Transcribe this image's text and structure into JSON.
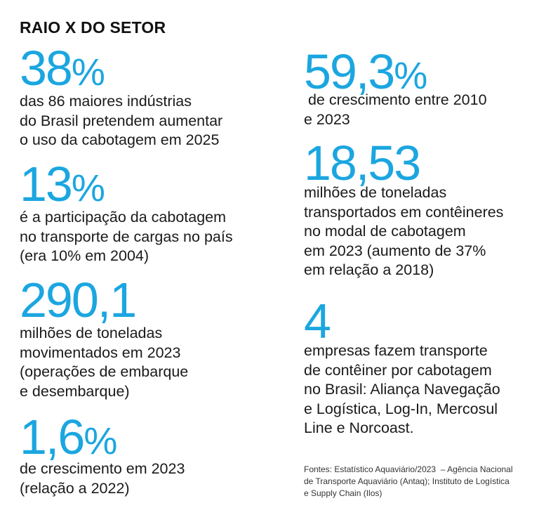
{
  "title": "RAIO X DO SETOR",
  "stats": [
    {
      "number": "38",
      "unit": "%",
      "lines": [
        "das 86 maiores indústrias",
        "do Brasil pretendem aumentar",
        "o uso da cabotagem em 2025"
      ]
    },
    {
      "number": "13",
      "unit": "%",
      "lines": [
        "é a participação da cabotagem",
        "no transporte de cargas no país",
        "(era 10% em 2004)"
      ]
    },
    {
      "number": "290,1",
      "lines": [
        "milhões de toneladas",
        "movimentados em 2023",
        "(operações de embarque",
        "e desembarque)"
      ]
    },
    {
      "number": "1,6",
      "unit": "%",
      "lines": [
        "de crescimento em 2023",
        "(relação a 2022)"
      ]
    },
    {
      "number": "59,3",
      "unit": "%",
      "lines": [
        " de crescimento entre 2010",
        "e 2023"
      ]
    },
    {
      "number": "18,53",
      "lines": [
        "milhões de toneladas",
        "transportados em contêineres",
        "no modal de cabotagem",
        "em 2023 (aumento de 37%",
        "em relação a 2018)"
      ]
    },
    {
      "number": "4",
      "lines": [
        "empresas fazem transporte",
        "de contêiner por cabotagem",
        "no Brasil: Aliança Navegação",
        "e Logística, Log-In, Mercosul",
        "Line e Norcoast."
      ]
    }
  ],
  "sources": [
    "Fontes: Estatístico Aquaviário/2023  – Agência Nacional",
    "de Transporte Aquaviário (Antaq); Instituto de Logística",
    "e Supply Chain (Ilos)"
  ]
}
